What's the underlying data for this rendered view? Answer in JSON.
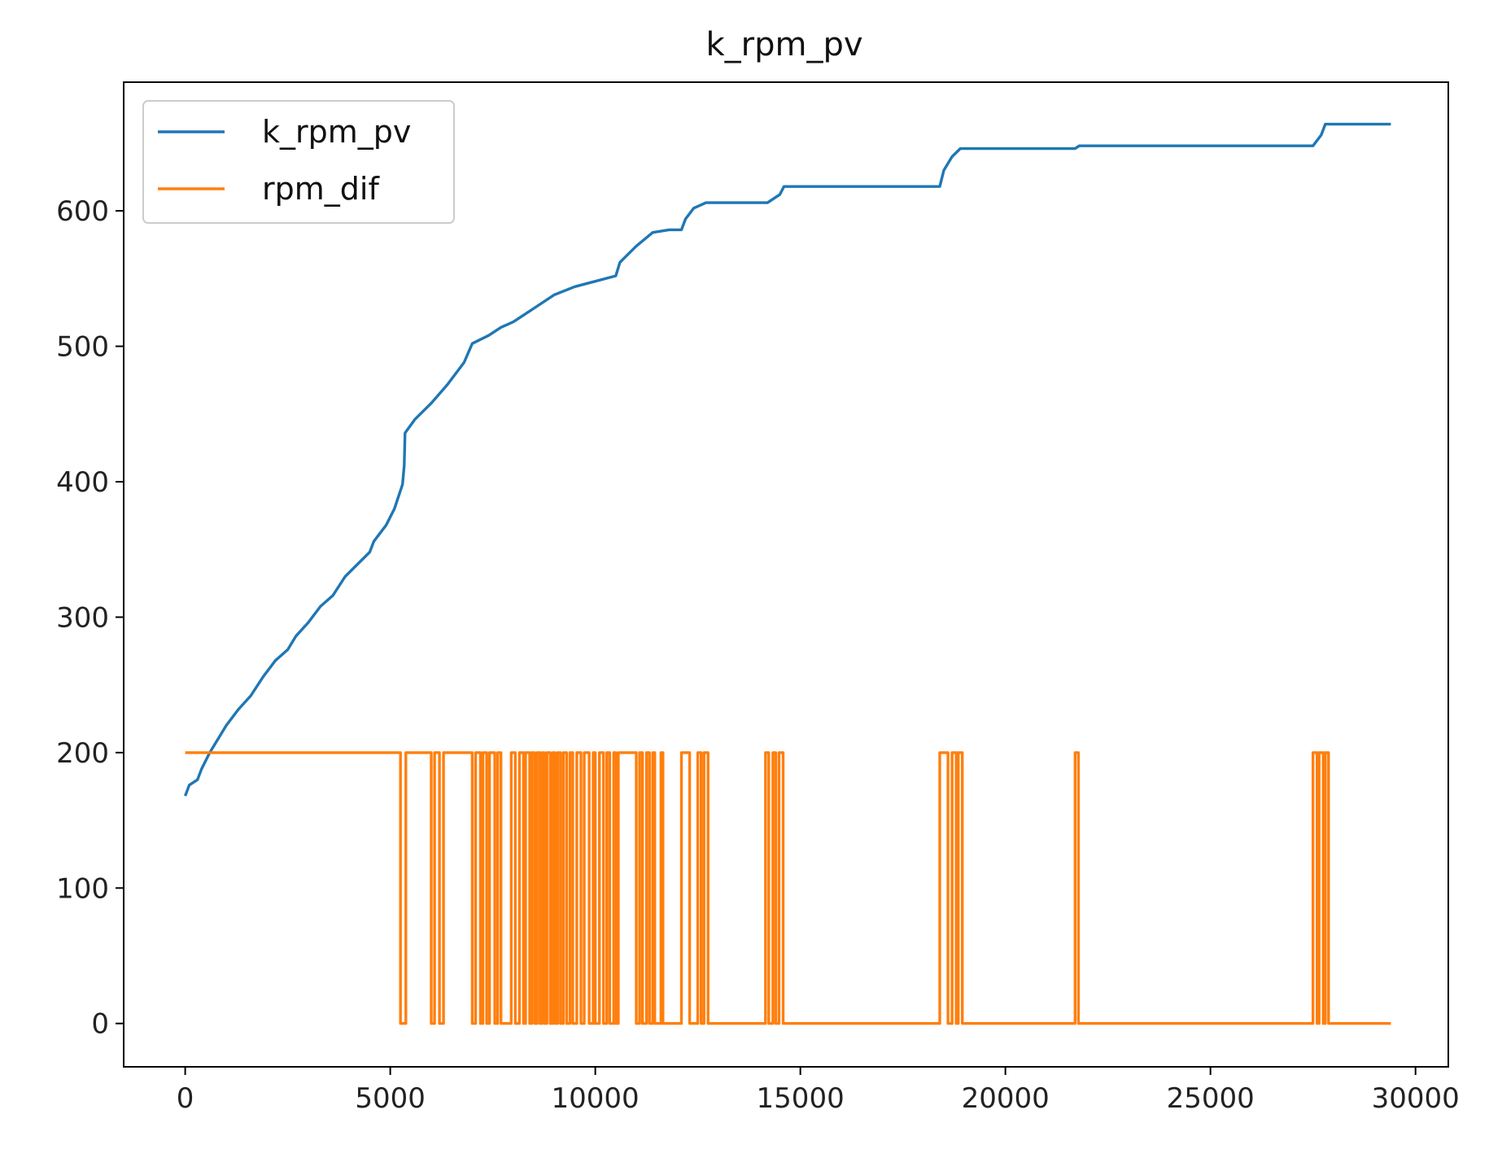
{
  "chart_data": {
    "type": "line",
    "title": "k_rpm_pv",
    "xlabel": "",
    "ylabel": "",
    "xlim": [
      -1500,
      30800
    ],
    "ylim": [
      -32,
      695
    ],
    "x_ticks": [
      0,
      5000,
      10000,
      15000,
      20000,
      25000,
      30000
    ],
    "y_ticks": [
      0,
      100,
      200,
      300,
      400,
      500,
      600
    ],
    "grid": false,
    "legend": {
      "position": "top-left"
    },
    "series": [
      {
        "name": "k_rpm_pv",
        "color": "#1f77b4",
        "points": [
          [
            0,
            168
          ],
          [
            100,
            176
          ],
          [
            300,
            180
          ],
          [
            400,
            188
          ],
          [
            600,
            200
          ],
          [
            800,
            210
          ],
          [
            1000,
            220
          ],
          [
            1300,
            232
          ],
          [
            1600,
            242
          ],
          [
            1900,
            256
          ],
          [
            2200,
            268
          ],
          [
            2500,
            276
          ],
          [
            2700,
            286
          ],
          [
            3000,
            296
          ],
          [
            3300,
            308
          ],
          [
            3600,
            316
          ],
          [
            3900,
            330
          ],
          [
            4300,
            342
          ],
          [
            4500,
            348
          ],
          [
            4600,
            356
          ],
          [
            4900,
            368
          ],
          [
            5100,
            380
          ],
          [
            5300,
            398
          ],
          [
            5340,
            412
          ],
          [
            5360,
            436
          ],
          [
            5600,
            446
          ],
          [
            6000,
            458
          ],
          [
            6400,
            472
          ],
          [
            6800,
            488
          ],
          [
            7000,
            502
          ],
          [
            7400,
            508
          ],
          [
            7700,
            514
          ],
          [
            8000,
            518
          ],
          [
            8500,
            528
          ],
          [
            9000,
            538
          ],
          [
            9500,
            544
          ],
          [
            10000,
            548
          ],
          [
            10500,
            552
          ],
          [
            10600,
            562
          ],
          [
            11000,
            574
          ],
          [
            11400,
            584
          ],
          [
            11800,
            586
          ],
          [
            12100,
            586
          ],
          [
            12200,
            594
          ],
          [
            12400,
            602
          ],
          [
            12700,
            606
          ],
          [
            14200,
            606
          ],
          [
            14500,
            612
          ],
          [
            14600,
            618
          ],
          [
            18400,
            618
          ],
          [
            18500,
            630
          ],
          [
            18700,
            640
          ],
          [
            18900,
            646
          ],
          [
            21700,
            646
          ],
          [
            21800,
            648
          ],
          [
            27500,
            648
          ],
          [
            27700,
            656
          ],
          [
            27800,
            664
          ],
          [
            29400,
            664
          ]
        ]
      },
      {
        "name": "rpm_dif",
        "color": "#ff7f0e",
        "points": [
          [
            0,
            200
          ],
          [
            5250,
            200
          ],
          [
            5250,
            0
          ],
          [
            5380,
            0
          ],
          [
            5380,
            200
          ],
          [
            6000,
            200
          ],
          [
            6000,
            0
          ],
          [
            6080,
            0
          ],
          [
            6080,
            200
          ],
          [
            6200,
            200
          ],
          [
            6200,
            0
          ],
          [
            6300,
            0
          ],
          [
            6300,
            200
          ],
          [
            7000,
            200
          ],
          [
            7000,
            0
          ],
          [
            7080,
            0
          ],
          [
            7080,
            200
          ],
          [
            7200,
            200
          ],
          [
            7200,
            0
          ],
          [
            7260,
            0
          ],
          [
            7260,
            200
          ],
          [
            7350,
            200
          ],
          [
            7350,
            0
          ],
          [
            7420,
            0
          ],
          [
            7420,
            200
          ],
          [
            7550,
            200
          ],
          [
            7550,
            0
          ],
          [
            7620,
            0
          ],
          [
            7620,
            200
          ],
          [
            7700,
            200
          ],
          [
            7700,
            0
          ],
          [
            7950,
            0
          ],
          [
            7950,
            200
          ],
          [
            8050,
            200
          ],
          [
            8050,
            0
          ],
          [
            8150,
            0
          ],
          [
            8150,
            200
          ],
          [
            8250,
            200
          ],
          [
            8250,
            0
          ],
          [
            8300,
            0
          ],
          [
            8300,
            200
          ],
          [
            8400,
            200
          ],
          [
            8400,
            0
          ],
          [
            8450,
            0
          ],
          [
            8450,
            200
          ],
          [
            8520,
            200
          ],
          [
            8520,
            0
          ],
          [
            8580,
            0
          ],
          [
            8580,
            200
          ],
          [
            8650,
            200
          ],
          [
            8650,
            0
          ],
          [
            8700,
            0
          ],
          [
            8700,
            200
          ],
          [
            8760,
            200
          ],
          [
            8760,
            0
          ],
          [
            8820,
            0
          ],
          [
            8820,
            200
          ],
          [
            8900,
            200
          ],
          [
            8900,
            0
          ],
          [
            8960,
            0
          ],
          [
            8960,
            200
          ],
          [
            9020,
            200
          ],
          [
            9020,
            0
          ],
          [
            9080,
            0
          ],
          [
            9080,
            200
          ],
          [
            9150,
            200
          ],
          [
            9150,
            0
          ],
          [
            9220,
            0
          ],
          [
            9220,
            200
          ],
          [
            9300,
            200
          ],
          [
            9300,
            0
          ],
          [
            9380,
            0
          ],
          [
            9380,
            200
          ],
          [
            9450,
            200
          ],
          [
            9450,
            0
          ],
          [
            9550,
            0
          ],
          [
            9550,
            200
          ],
          [
            9650,
            200
          ],
          [
            9650,
            0
          ],
          [
            9730,
            0
          ],
          [
            9730,
            200
          ],
          [
            9850,
            200
          ],
          [
            9850,
            0
          ],
          [
            9950,
            0
          ],
          [
            9950,
            200
          ],
          [
            10000,
            200
          ],
          [
            10000,
            0
          ],
          [
            10100,
            0
          ],
          [
            10100,
            200
          ],
          [
            10200,
            200
          ],
          [
            10200,
            0
          ],
          [
            10280,
            0
          ],
          [
            10280,
            200
          ],
          [
            10350,
            200
          ],
          [
            10350,
            0
          ],
          [
            10450,
            0
          ],
          [
            10450,
            200
          ],
          [
            10500,
            200
          ],
          [
            10500,
            0
          ],
          [
            10560,
            0
          ],
          [
            10560,
            200
          ],
          [
            11000,
            200
          ],
          [
            11000,
            0
          ],
          [
            11080,
            0
          ],
          [
            11080,
            200
          ],
          [
            11150,
            200
          ],
          [
            11150,
            0
          ],
          [
            11250,
            0
          ],
          [
            11250,
            200
          ],
          [
            11320,
            200
          ],
          [
            11320,
            0
          ],
          [
            11400,
            0
          ],
          [
            11400,
            200
          ],
          [
            11450,
            200
          ],
          [
            11450,
            0
          ],
          [
            11600,
            0
          ],
          [
            11600,
            200
          ],
          [
            11650,
            200
          ],
          [
            11650,
            0
          ],
          [
            12100,
            0
          ],
          [
            12100,
            200
          ],
          [
            12300,
            200
          ],
          [
            12300,
            0
          ],
          [
            12500,
            0
          ],
          [
            12500,
            200
          ],
          [
            12580,
            200
          ],
          [
            12580,
            0
          ],
          [
            12650,
            0
          ],
          [
            12650,
            200
          ],
          [
            12750,
            200
          ],
          [
            12750,
            0
          ],
          [
            14150,
            0
          ],
          [
            14150,
            200
          ],
          [
            14230,
            200
          ],
          [
            14230,
            0
          ],
          [
            14330,
            0
          ],
          [
            14330,
            200
          ],
          [
            14400,
            200
          ],
          [
            14400,
            0
          ],
          [
            14480,
            0
          ],
          [
            14480,
            200
          ],
          [
            14580,
            200
          ],
          [
            14580,
            0
          ],
          [
            18400,
            0
          ],
          [
            18400,
            200
          ],
          [
            18600,
            200
          ],
          [
            18600,
            0
          ],
          [
            18700,
            0
          ],
          [
            18700,
            200
          ],
          [
            18800,
            200
          ],
          [
            18800,
            0
          ],
          [
            18850,
            0
          ],
          [
            18850,
            200
          ],
          [
            18950,
            200
          ],
          [
            18950,
            0
          ],
          [
            21700,
            0
          ],
          [
            21700,
            200
          ],
          [
            21780,
            200
          ],
          [
            21780,
            0
          ],
          [
            27500,
            0
          ],
          [
            27500,
            200
          ],
          [
            27600,
            200
          ],
          [
            27600,
            0
          ],
          [
            27650,
            0
          ],
          [
            27650,
            200
          ],
          [
            27750,
            200
          ],
          [
            27750,
            0
          ],
          [
            27800,
            0
          ],
          [
            27800,
            200
          ],
          [
            27880,
            200
          ],
          [
            27880,
            0
          ],
          [
            29400,
            0
          ]
        ]
      }
    ]
  }
}
